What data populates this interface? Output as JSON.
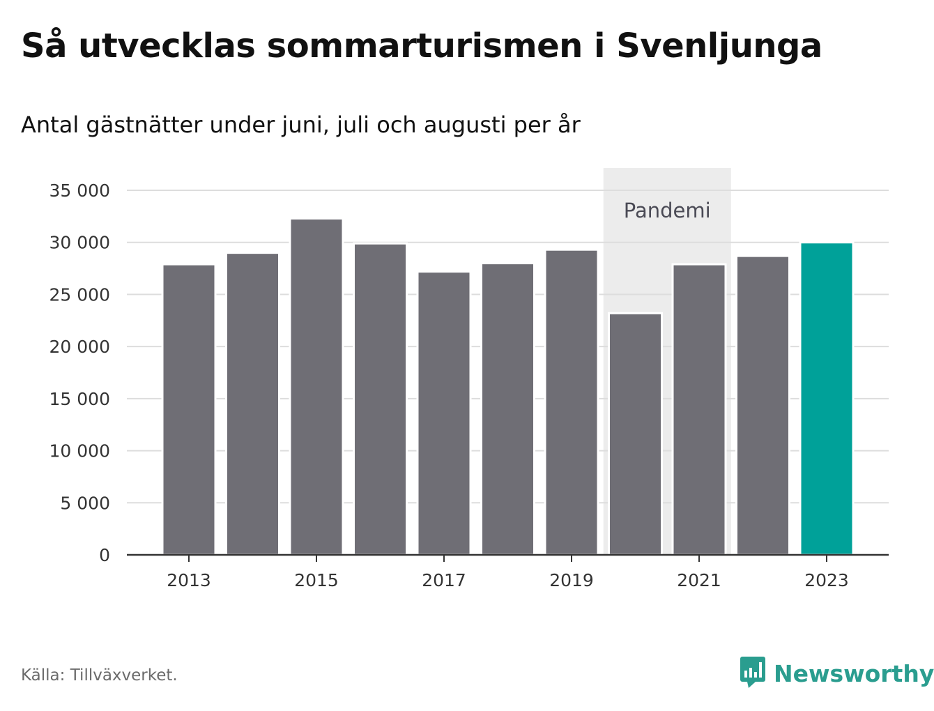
{
  "header": {
    "title": "Så utvecklas sommarturismen i Svenljunga",
    "subtitle": "Antal gästnätter under juni, juli och augusti per år"
  },
  "footer": {
    "source": "Källa: Tillväxverket.",
    "brand": "Newsworthy",
    "brand_icon": "bar-chart-speech-icon"
  },
  "chart_data": {
    "type": "bar",
    "categories": [
      "2013",
      "2014",
      "2015",
      "2016",
      "2017",
      "2018",
      "2019",
      "2020",
      "2021",
      "2022",
      "2023"
    ],
    "values": [
      27900,
      29000,
      32300,
      29900,
      27200,
      28000,
      29300,
      23200,
      27900,
      28700,
      30000
    ],
    "x_tick_labels": [
      "2013",
      "2015",
      "2017",
      "2019",
      "2021",
      "2023"
    ],
    "y_tick_labels": [
      "0",
      "5 000",
      "10 000",
      "15 000",
      "20 000",
      "25 000",
      "30 000",
      "35 000"
    ],
    "y_ticks": [
      0,
      5000,
      10000,
      15000,
      20000,
      25000,
      30000,
      35000
    ],
    "ylim": [
      0,
      35000
    ],
    "grid": true,
    "bar_color": "#6f6e75",
    "highlight_category": "2023",
    "highlight_color": "#00a199",
    "highlight_band": {
      "label": "Pandemi",
      "from": "2020",
      "to": "2021",
      "color": "#ececec"
    }
  }
}
